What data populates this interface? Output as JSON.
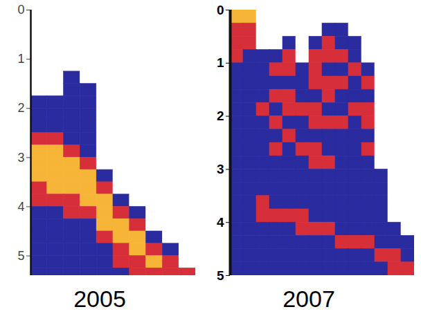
{
  "chart_data": [
    {
      "type": "heatmap",
      "title": "2005",
      "x_edges": [
        0,
        1,
        2,
        3,
        4,
        5,
        6,
        7,
        8,
        9,
        10
      ],
      "y_edges": [
        0,
        0.25,
        0.5,
        0.75,
        1,
        1.25,
        1.5,
        1.75,
        2,
        2.25,
        2.5,
        2.75,
        3,
        3.25,
        3.5,
        3.75,
        4,
        4.25,
        4.5,
        4.75,
        5,
        5.25,
        5.5
      ],
      "z": [
        [
          0,
          0,
          0,
          0,
          0,
          0,
          0,
          0,
          0,
          0
        ],
        [
          0,
          0,
          0,
          0,
          0,
          0,
          0,
          0,
          0,
          0
        ],
        [
          0,
          0,
          0,
          0,
          0,
          0,
          0,
          0,
          0,
          0
        ],
        [
          0,
          0,
          0,
          0,
          0,
          0,
          0,
          0,
          0,
          0
        ],
        [
          0,
          0,
          0,
          0,
          0,
          0,
          0,
          0,
          0,
          0
        ],
        [
          0,
          0,
          1,
          0,
          0,
          0,
          0,
          0,
          0,
          0
        ],
        [
          0,
          0,
          1,
          1,
          0,
          0,
          0,
          0,
          0,
          0
        ],
        [
          1,
          1,
          1,
          1,
          0,
          0,
          0,
          0,
          0,
          0
        ],
        [
          1,
          1,
          1,
          1,
          0,
          0,
          0,
          0,
          0,
          0
        ],
        [
          1,
          1,
          1,
          1,
          0,
          0,
          0,
          0,
          0,
          0
        ],
        [
          2,
          2,
          1,
          1,
          0,
          0,
          0,
          0,
          0,
          0
        ],
        [
          3,
          3,
          2,
          1,
          0,
          0,
          0,
          0,
          0,
          0
        ],
        [
          3,
          3,
          3,
          2,
          0,
          0,
          0,
          0,
          0,
          0
        ],
        [
          3,
          3,
          3,
          3,
          1,
          0,
          0,
          0,
          0,
          0
        ],
        [
          2,
          3,
          3,
          3,
          2,
          0,
          0,
          0,
          0,
          0
        ],
        [
          2,
          2,
          2,
          3,
          3,
          1,
          0,
          0,
          0,
          0
        ],
        [
          1,
          1,
          2,
          2,
          3,
          2,
          1,
          0,
          0,
          0
        ],
        [
          1,
          1,
          1,
          1,
          3,
          3,
          2,
          0,
          0,
          0
        ],
        [
          1,
          1,
          1,
          1,
          2,
          3,
          3,
          1,
          0,
          0
        ],
        [
          1,
          1,
          1,
          1,
          1,
          2,
          3,
          2,
          1,
          0
        ],
        [
          1,
          1,
          1,
          1,
          1,
          2,
          2,
          3,
          2,
          0
        ],
        [
          1,
          1,
          1,
          1,
          1,
          1,
          2,
          2,
          2,
          2
        ]
      ],
      "levels": [
        0,
        1,
        2,
        3
      ],
      "colors": [
        "#ffffff",
        "#2b2ba0",
        "#d62f3a",
        "#f7b538"
      ],
      "xlim": [
        0,
        10
      ],
      "ylim": [
        0,
        5.4
      ],
      "yticks": [
        0,
        1,
        2,
        3,
        4,
        5
      ],
      "tick_labels": "y"
    },
    {
      "type": "heatmap",
      "title": "2007",
      "x_edges": [
        0,
        1,
        2,
        3,
        4,
        5,
        6,
        7,
        8,
        9,
        10,
        11,
        12,
        13,
        14
      ],
      "y_edges": [
        0,
        0.25,
        0.5,
        0.75,
        1,
        1.25,
        1.5,
        1.75,
        2,
        2.25,
        2.5,
        2.75,
        3,
        3.25,
        3.5,
        3.75,
        4,
        4.25,
        4.5,
        4.75,
        5
      ],
      "z": [
        [
          3,
          3,
          0,
          0,
          0,
          0,
          0,
          0,
          0,
          0,
          0,
          0,
          0,
          0
        ],
        [
          2,
          2,
          0,
          0,
          0,
          0,
          0,
          1,
          1,
          0,
          0,
          0,
          0,
          0
        ],
        [
          2,
          2,
          0,
          0,
          1,
          0,
          1,
          2,
          1,
          1,
          0,
          0,
          0,
          0
        ],
        [
          2,
          1,
          1,
          1,
          2,
          0,
          2,
          2,
          2,
          1,
          0,
          0,
          0,
          0
        ],
        [
          1,
          1,
          1,
          2,
          2,
          1,
          2,
          1,
          1,
          2,
          1,
          0,
          0,
          0
        ],
        [
          1,
          1,
          1,
          1,
          1,
          1,
          2,
          2,
          2,
          1,
          2,
          0,
          0,
          0
        ],
        [
          1,
          1,
          1,
          2,
          2,
          1,
          1,
          2,
          1,
          1,
          1,
          0,
          0,
          0
        ],
        [
          1,
          1,
          2,
          1,
          2,
          2,
          2,
          1,
          1,
          2,
          2,
          0,
          0,
          0
        ],
        [
          1,
          1,
          1,
          2,
          1,
          1,
          2,
          2,
          2,
          1,
          2,
          0,
          0,
          0
        ],
        [
          1,
          1,
          1,
          1,
          2,
          1,
          1,
          1,
          1,
          1,
          1,
          0,
          0,
          0
        ],
        [
          1,
          1,
          1,
          2,
          1,
          2,
          2,
          1,
          1,
          1,
          2,
          0,
          0,
          0
        ],
        [
          1,
          1,
          1,
          1,
          1,
          1,
          2,
          2,
          1,
          1,
          1,
          0,
          0,
          0
        ],
        [
          1,
          1,
          1,
          1,
          1,
          1,
          1,
          1,
          1,
          1,
          1,
          1,
          0,
          0
        ],
        [
          1,
          1,
          1,
          1,
          1,
          1,
          1,
          1,
          1,
          1,
          1,
          1,
          0,
          0
        ],
        [
          1,
          1,
          2,
          1,
          1,
          1,
          1,
          1,
          1,
          1,
          1,
          1,
          0,
          0
        ],
        [
          1,
          1,
          2,
          2,
          2,
          2,
          1,
          1,
          1,
          1,
          1,
          1,
          0,
          0
        ],
        [
          1,
          1,
          1,
          1,
          1,
          2,
          2,
          2,
          1,
          1,
          1,
          1,
          1,
          0
        ],
        [
          1,
          1,
          1,
          1,
          1,
          1,
          1,
          1,
          2,
          2,
          2,
          1,
          1,
          1
        ],
        [
          1,
          1,
          1,
          1,
          1,
          1,
          1,
          1,
          1,
          1,
          1,
          2,
          2,
          1
        ],
        [
          1,
          1,
          1,
          1,
          1,
          1,
          1,
          1,
          1,
          1,
          1,
          1,
          2,
          2
        ]
      ],
      "levels": [
        0,
        1,
        2,
        3
      ],
      "colors": [
        "#ffffff",
        "#2b2ba0",
        "#d62f3a",
        "#f7b538"
      ],
      "xlim": [
        0,
        14
      ],
      "ylim": [
        0,
        5
      ],
      "yticks": [
        0,
        1,
        2,
        3,
        4,
        5
      ],
      "tick_labels": "y"
    }
  ]
}
